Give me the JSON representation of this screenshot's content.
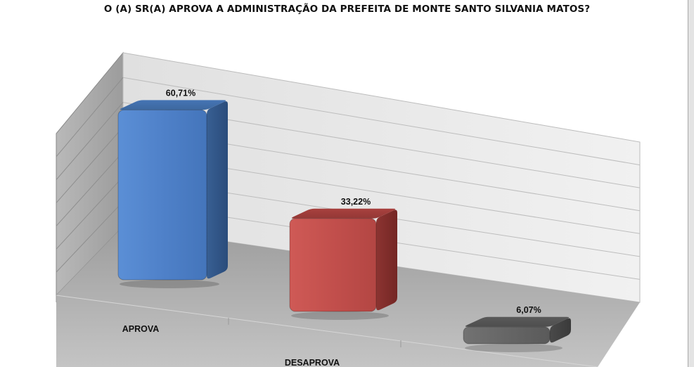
{
  "chart_data": {
    "type": "bar",
    "title": "O (A) SR(A) APROVA A ADMINISTRAÇÃO DA PREFEITA DE MONTE SANTO SILVANIA MATOS?",
    "categories": [
      "APROVA",
      "DESAPROVA",
      ""
    ],
    "values": [
      60.71,
      33.22,
      6.07
    ],
    "data_labels": [
      "60,71%",
      "33,22%",
      "6,07%"
    ],
    "colors": [
      "#4f81c9",
      "#c0504d",
      "#6b6b6b"
    ],
    "ylim": [
      0,
      100
    ],
    "grid": true,
    "legend": "none",
    "style": "3d-perspective"
  }
}
